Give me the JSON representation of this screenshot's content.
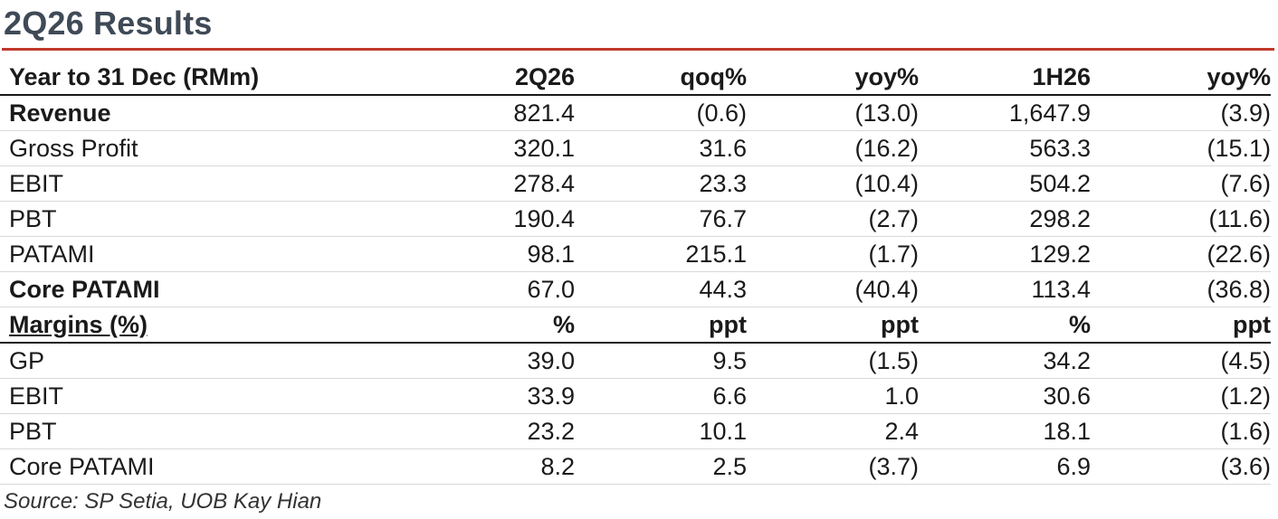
{
  "title": "2Q26 Results",
  "header": [
    "Year to 31 Dec (RMm)",
    "2Q26",
    "qoq%",
    "yoy%",
    "1H26",
    "yoy%"
  ],
  "rows": [
    {
      "label": "Revenue",
      "values": [
        "821.4",
        "(0.6)",
        "(13.0)",
        "1,647.9",
        "(3.9)"
      ]
    },
    {
      "label": "Gross Profit",
      "values": [
        "320.1",
        "31.6",
        "(16.2)",
        "563.3",
        "(15.1)"
      ]
    },
    {
      "label": "EBIT",
      "values": [
        "278.4",
        "23.3",
        "(10.4)",
        "504.2",
        "(7.6)"
      ]
    },
    {
      "label": "PBT",
      "values": [
        "190.4",
        "76.7",
        "(2.7)",
        "298.2",
        "(11.6)"
      ]
    },
    {
      "label": "PATAMI",
      "values": [
        "98.1",
        "215.1",
        "(1.7)",
        "129.2",
        "(22.6)"
      ]
    },
    {
      "label": "Core PATAMI",
      "values": [
        "67.0",
        "44.3",
        "(40.4)",
        "113.4",
        "(36.8)"
      ]
    }
  ],
  "margins_header": [
    "Margins (%)",
    "%",
    "ppt",
    "ppt",
    "%",
    "ppt"
  ],
  "margins": [
    {
      "label": "GP",
      "values": [
        "39.0",
        "9.5",
        "(1.5)",
        "34.2",
        "(4.5)"
      ]
    },
    {
      "label": "EBIT",
      "values": [
        "33.9",
        "6.6",
        "1.0",
        "30.6",
        "(1.2)"
      ]
    },
    {
      "label": "PBT",
      "values": [
        "23.2",
        "10.1",
        "2.4",
        "18.1",
        "(1.6)"
      ]
    },
    {
      "label": "Core PATAMI",
      "values": [
        "8.2",
        "2.5",
        "(3.7)",
        "6.9",
        "(3.6)"
      ]
    }
  ],
  "source": "Source: SP Setia, UOB Kay Hian",
  "colors": {
    "accent": "#c0392b",
    "title": "#3f4a56"
  }
}
